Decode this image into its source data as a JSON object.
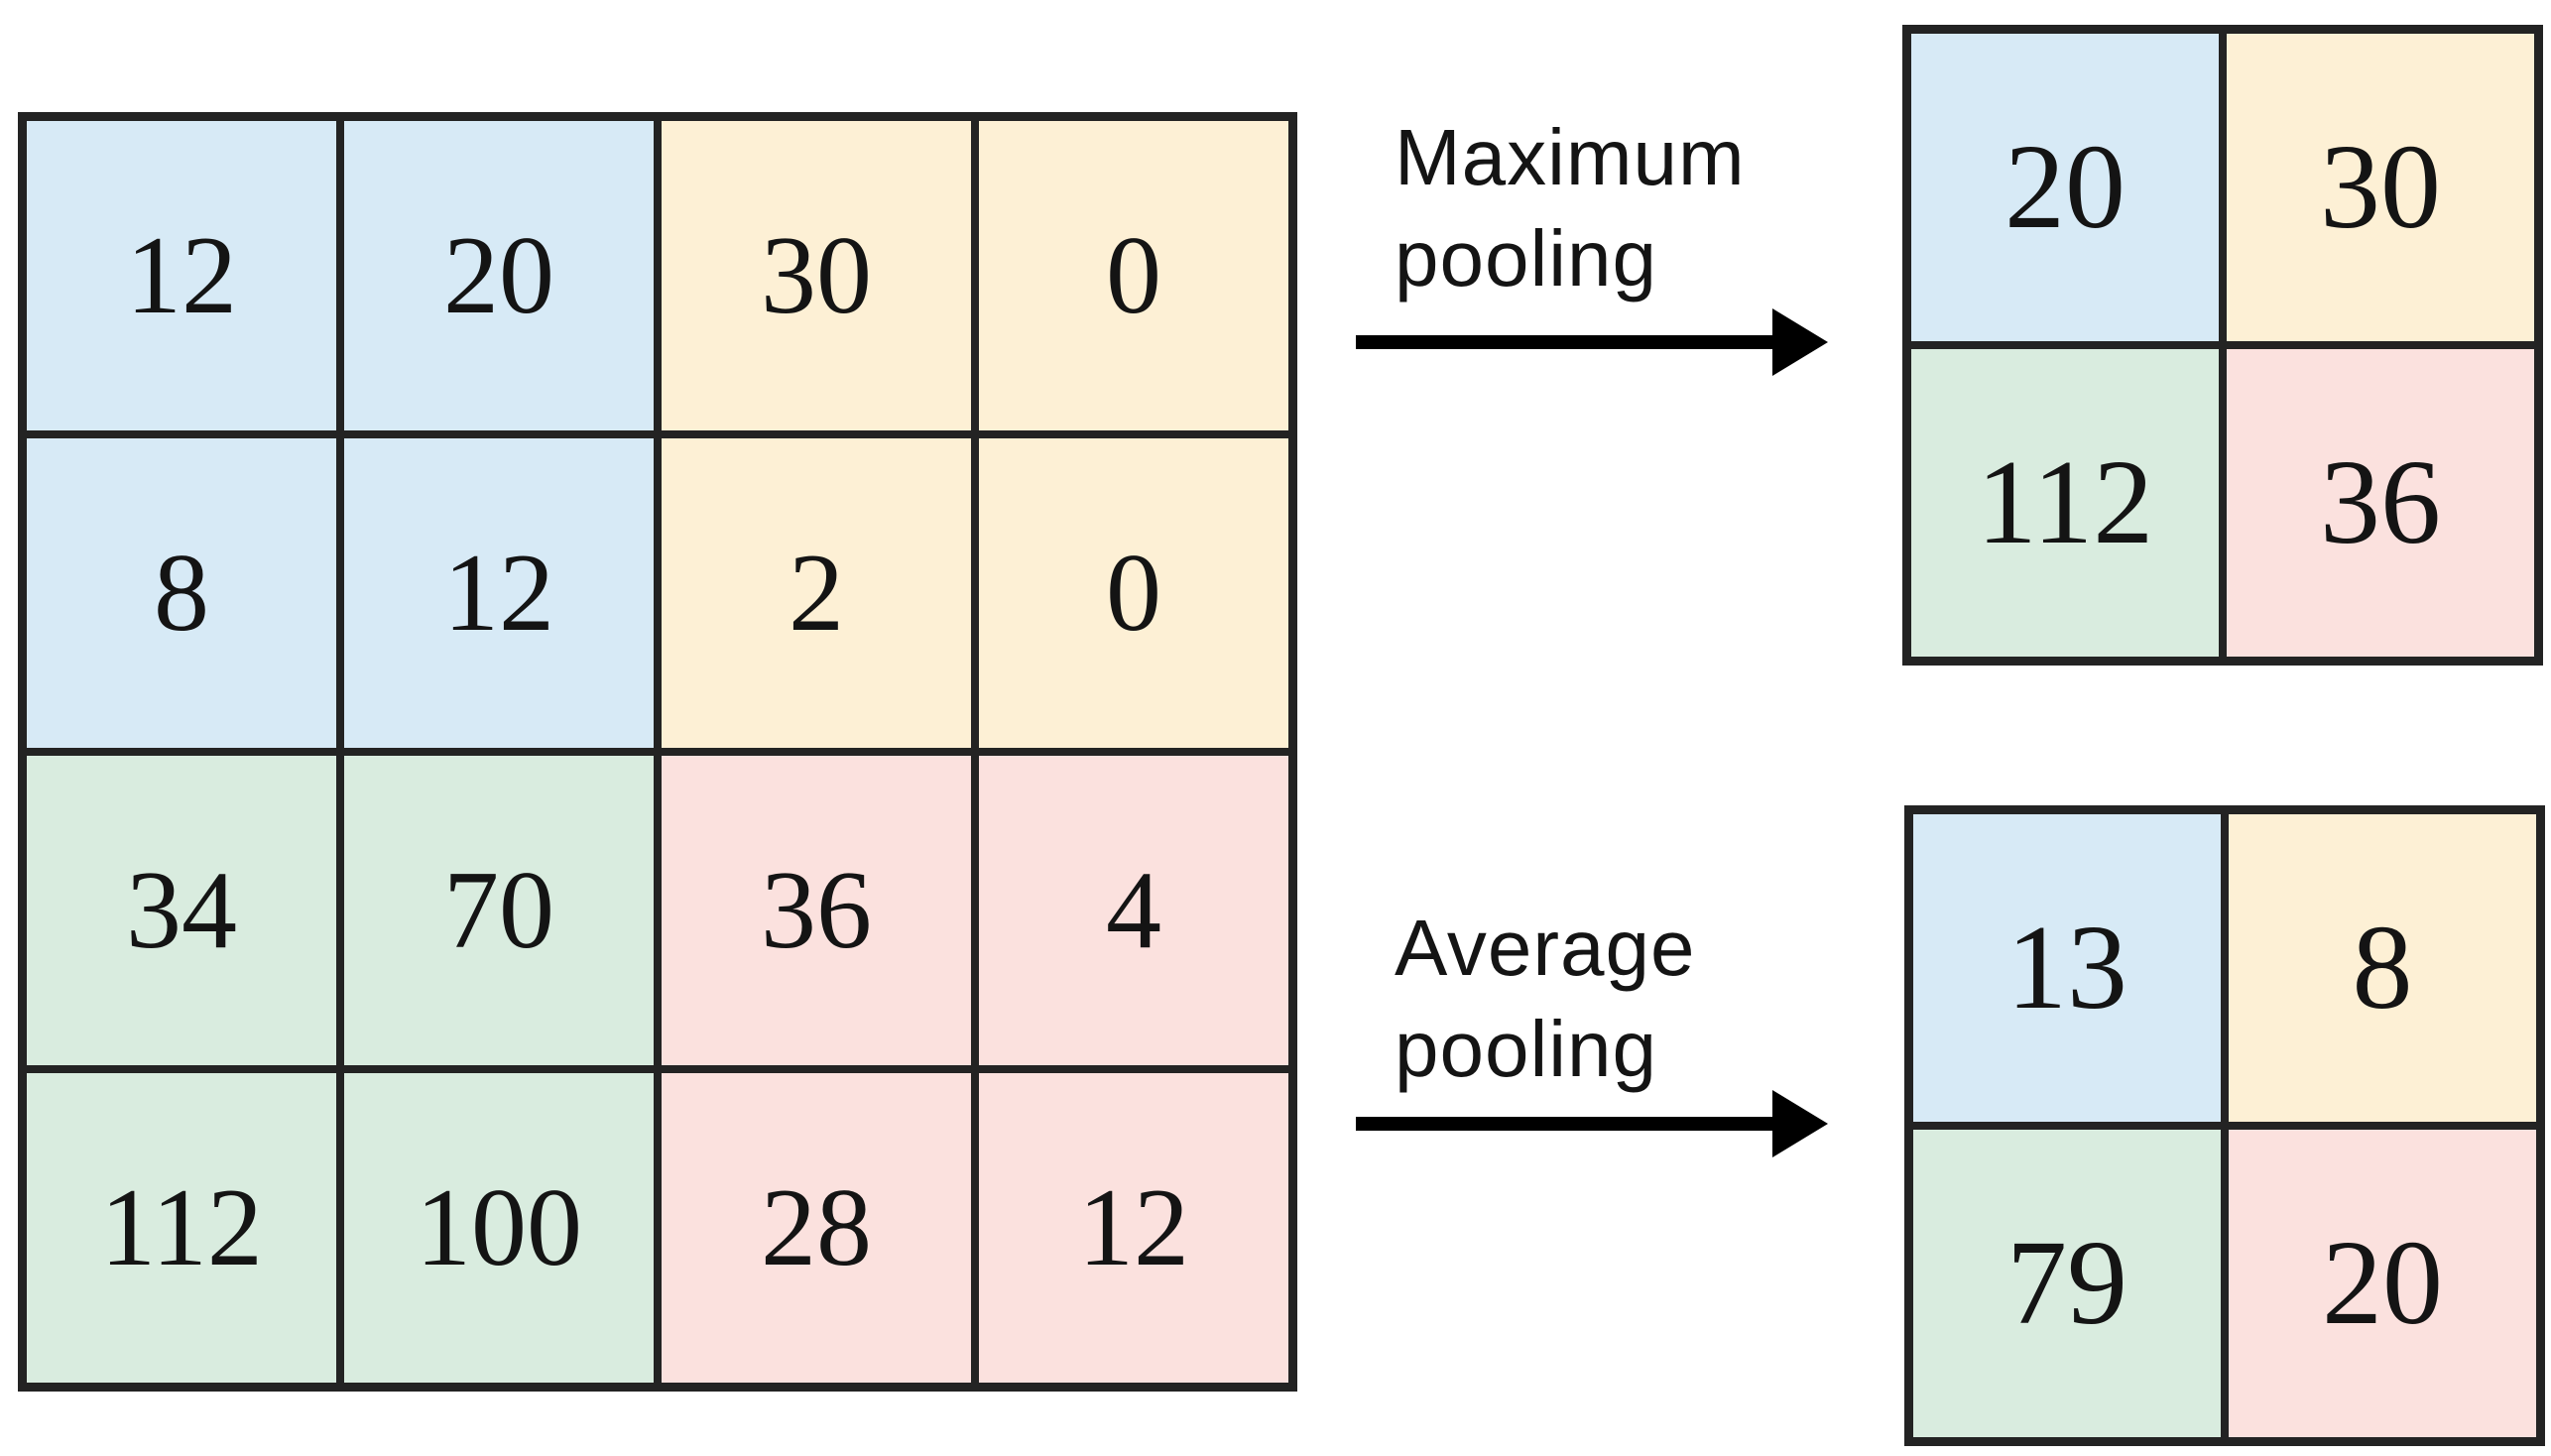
{
  "colors": {
    "blue": "#d7eaf6",
    "cream": "#fdf0d5",
    "green": "#d9ecdf",
    "pink": "#fbe1de",
    "border": "#232323",
    "text": "#141414",
    "arrow": "#000000"
  },
  "quadrant_fill": {
    "top_left": "blue",
    "top_right": "cream",
    "bottom_left": "green",
    "bottom_right": "pink"
  },
  "input_grid": {
    "rows": 4,
    "cols": 4,
    "values": [
      [
        12,
        20,
        30,
        0
      ],
      [
        8,
        12,
        2,
        0
      ],
      [
        34,
        70,
        36,
        4
      ],
      [
        112,
        100,
        28,
        12
      ]
    ]
  },
  "max_pooling": {
    "label_lines": [
      "Maximum",
      "pooling"
    ],
    "arrow_icon": "right-arrow-icon",
    "result": {
      "rows": 2,
      "cols": 2,
      "values": [
        [
          20,
          30
        ],
        [
          112,
          36
        ]
      ]
    }
  },
  "average_pooling": {
    "label_lines": [
      "Average",
      "pooling"
    ],
    "arrow_icon": "right-arrow-icon",
    "result": {
      "rows": 2,
      "cols": 2,
      "values": [
        [
          13,
          8
        ],
        [
          79,
          20
        ]
      ]
    }
  }
}
